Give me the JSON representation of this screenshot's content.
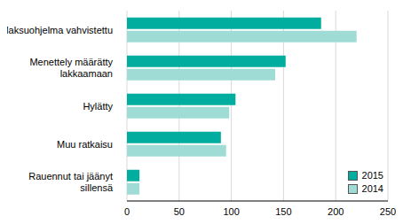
{
  "chart_data": {
    "type": "bar",
    "orientation": "horizontal",
    "categories": [
      "Maksuohjelma vahvistettu",
      "Menettely määrätty lakkaamaan",
      "Hylätty",
      "Muu ratkaisu",
      "Rauennut tai jäänyt sillensä"
    ],
    "series": [
      {
        "name": "2015",
        "color": "#00ad9f",
        "values": [
          186,
          152,
          104,
          90,
          12
        ]
      },
      {
        "name": "2014",
        "color": "#9fdcd6",
        "values": [
          220,
          142,
          98,
          95,
          12
        ]
      }
    ],
    "xlim": [
      0,
      250
    ],
    "xticks": [
      0,
      50,
      100,
      150,
      200,
      250
    ],
    "grid": true,
    "legend": "lower right"
  }
}
